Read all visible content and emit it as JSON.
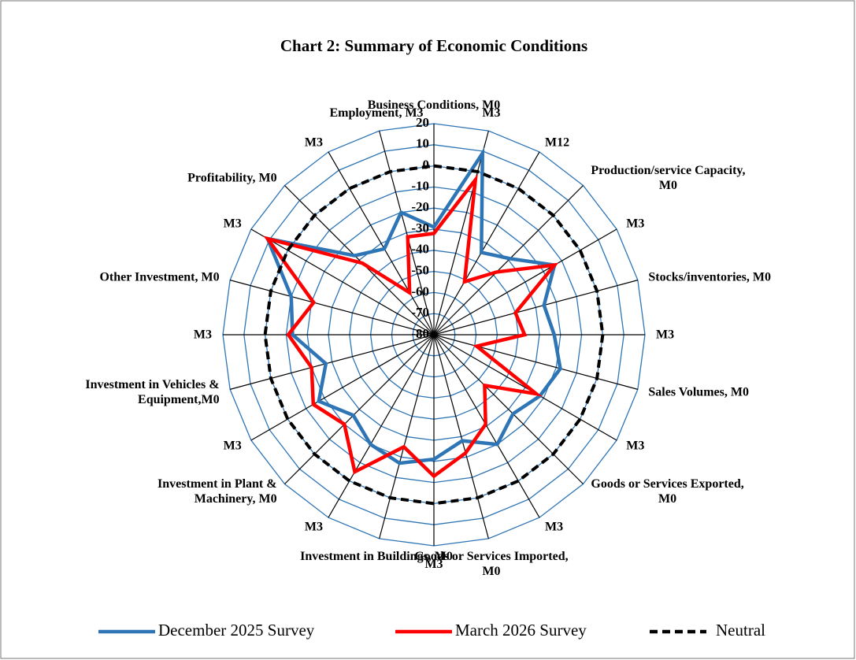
{
  "chart_data": {
    "type": "radar",
    "title": "Chart 2: Summary of Economic Conditions",
    "categories": [
      "Business Conditions, M0",
      "M3",
      "M12",
      "Production/service Capacity,\nM0",
      "M3",
      "Stocks/inventories, M0",
      "M3",
      "Sales Volumes, M0",
      "M3",
      "Goods or Services Exported,\nM0",
      "M3",
      "Goods or Services Imported,\nM0",
      "M3",
      "Investment in Buildings, M0",
      "M3",
      "Investment in Plant &\nMachinery, M0",
      "M3",
      "Investment in Vehicles &\nEquipment,M0",
      "M3",
      "Other Investment, M0",
      "M3",
      "Profitability, M0",
      "M3",
      "Employment, M3"
    ],
    "ylim": [
      -80,
      20
    ],
    "yticks": [
      -80,
      -70,
      -60,
      -50,
      -40,
      -30,
      -20,
      -10,
      0,
      10,
      20
    ],
    "grid": true,
    "legend": "bottom",
    "series": [
      {
        "name": "December 2025 Survey",
        "color": "#2e75b6",
        "dashed": false,
        "values": [
          -29,
          9,
          -35,
          -29,
          -14,
          -26,
          -23,
          -18,
          -22,
          -27,
          -20,
          -28,
          -21,
          -17,
          -20,
          -26,
          -17,
          -27,
          -13,
          -10,
          11,
          -27,
          -33,
          -20
        ]
      },
      {
        "name": "March 2026 Survey",
        "color": "#ff0000",
        "dashed": false,
        "values": [
          -32,
          -4,
          -51,
          -38,
          -14,
          -40,
          -37,
          -59,
          -24,
          -46,
          -31,
          -22,
          -13,
          -25,
          -5,
          -20,
          -14,
          -20,
          -11,
          -21,
          11,
          -32,
          -57,
          -32
        ]
      },
      {
        "name": "Neutral",
        "color": "#000000",
        "dashed": true,
        "values": [
          0,
          0,
          0,
          0,
          0,
          0,
          0,
          0,
          0,
          0,
          0,
          0,
          0,
          0,
          0,
          0,
          0,
          0,
          0,
          0,
          0,
          0,
          0,
          0
        ]
      }
    ]
  }
}
